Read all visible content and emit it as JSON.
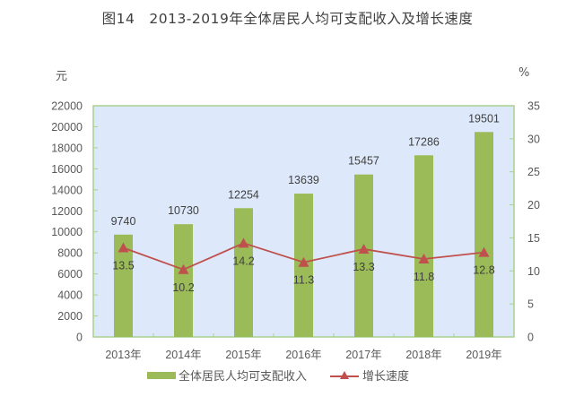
{
  "title": "图14　2013-2019年全体居民人均可支配收入及增长速度",
  "left_unit": "元",
  "right_unit": "%",
  "legend": {
    "bar_label": "全体居民人均可支配收入",
    "line_label": "增长速度"
  },
  "colors": {
    "bar": "#9bbb59",
    "line": "#c0504d",
    "plot_bg": "#dde9fa",
    "plot_border": "#a9d18e"
  },
  "chart_data": {
    "type": "bar",
    "title": "图14　2013-2019年全体居民人均可支配收入及增长速度",
    "categories": [
      "2013年",
      "2014年",
      "2015年",
      "2016年",
      "2017年",
      "2018年",
      "2019年"
    ],
    "series": [
      {
        "name": "全体居民人均可支配收入",
        "type": "bar",
        "axis": "left",
        "values": [
          9740,
          10730,
          12254,
          13639,
          15457,
          17286,
          19501
        ]
      },
      {
        "name": "增长速度",
        "type": "line",
        "axis": "right",
        "marker": "triangle",
        "values": [
          13.5,
          10.2,
          14.2,
          11.3,
          13.3,
          11.8,
          12.8
        ]
      }
    ],
    "xlabel": "",
    "ylabel": "元",
    "ylabel_right": "%",
    "ylim": [
      0,
      22000
    ],
    "ylim_right": [
      0,
      35
    ],
    "yticks": [
      0,
      2000,
      4000,
      6000,
      8000,
      10000,
      12000,
      14000,
      16000,
      18000,
      20000,
      22000
    ],
    "yticks_right": [
      0,
      5,
      10,
      15,
      20,
      25,
      30,
      35
    ],
    "grid": false,
    "legend_position": "bottom"
  }
}
